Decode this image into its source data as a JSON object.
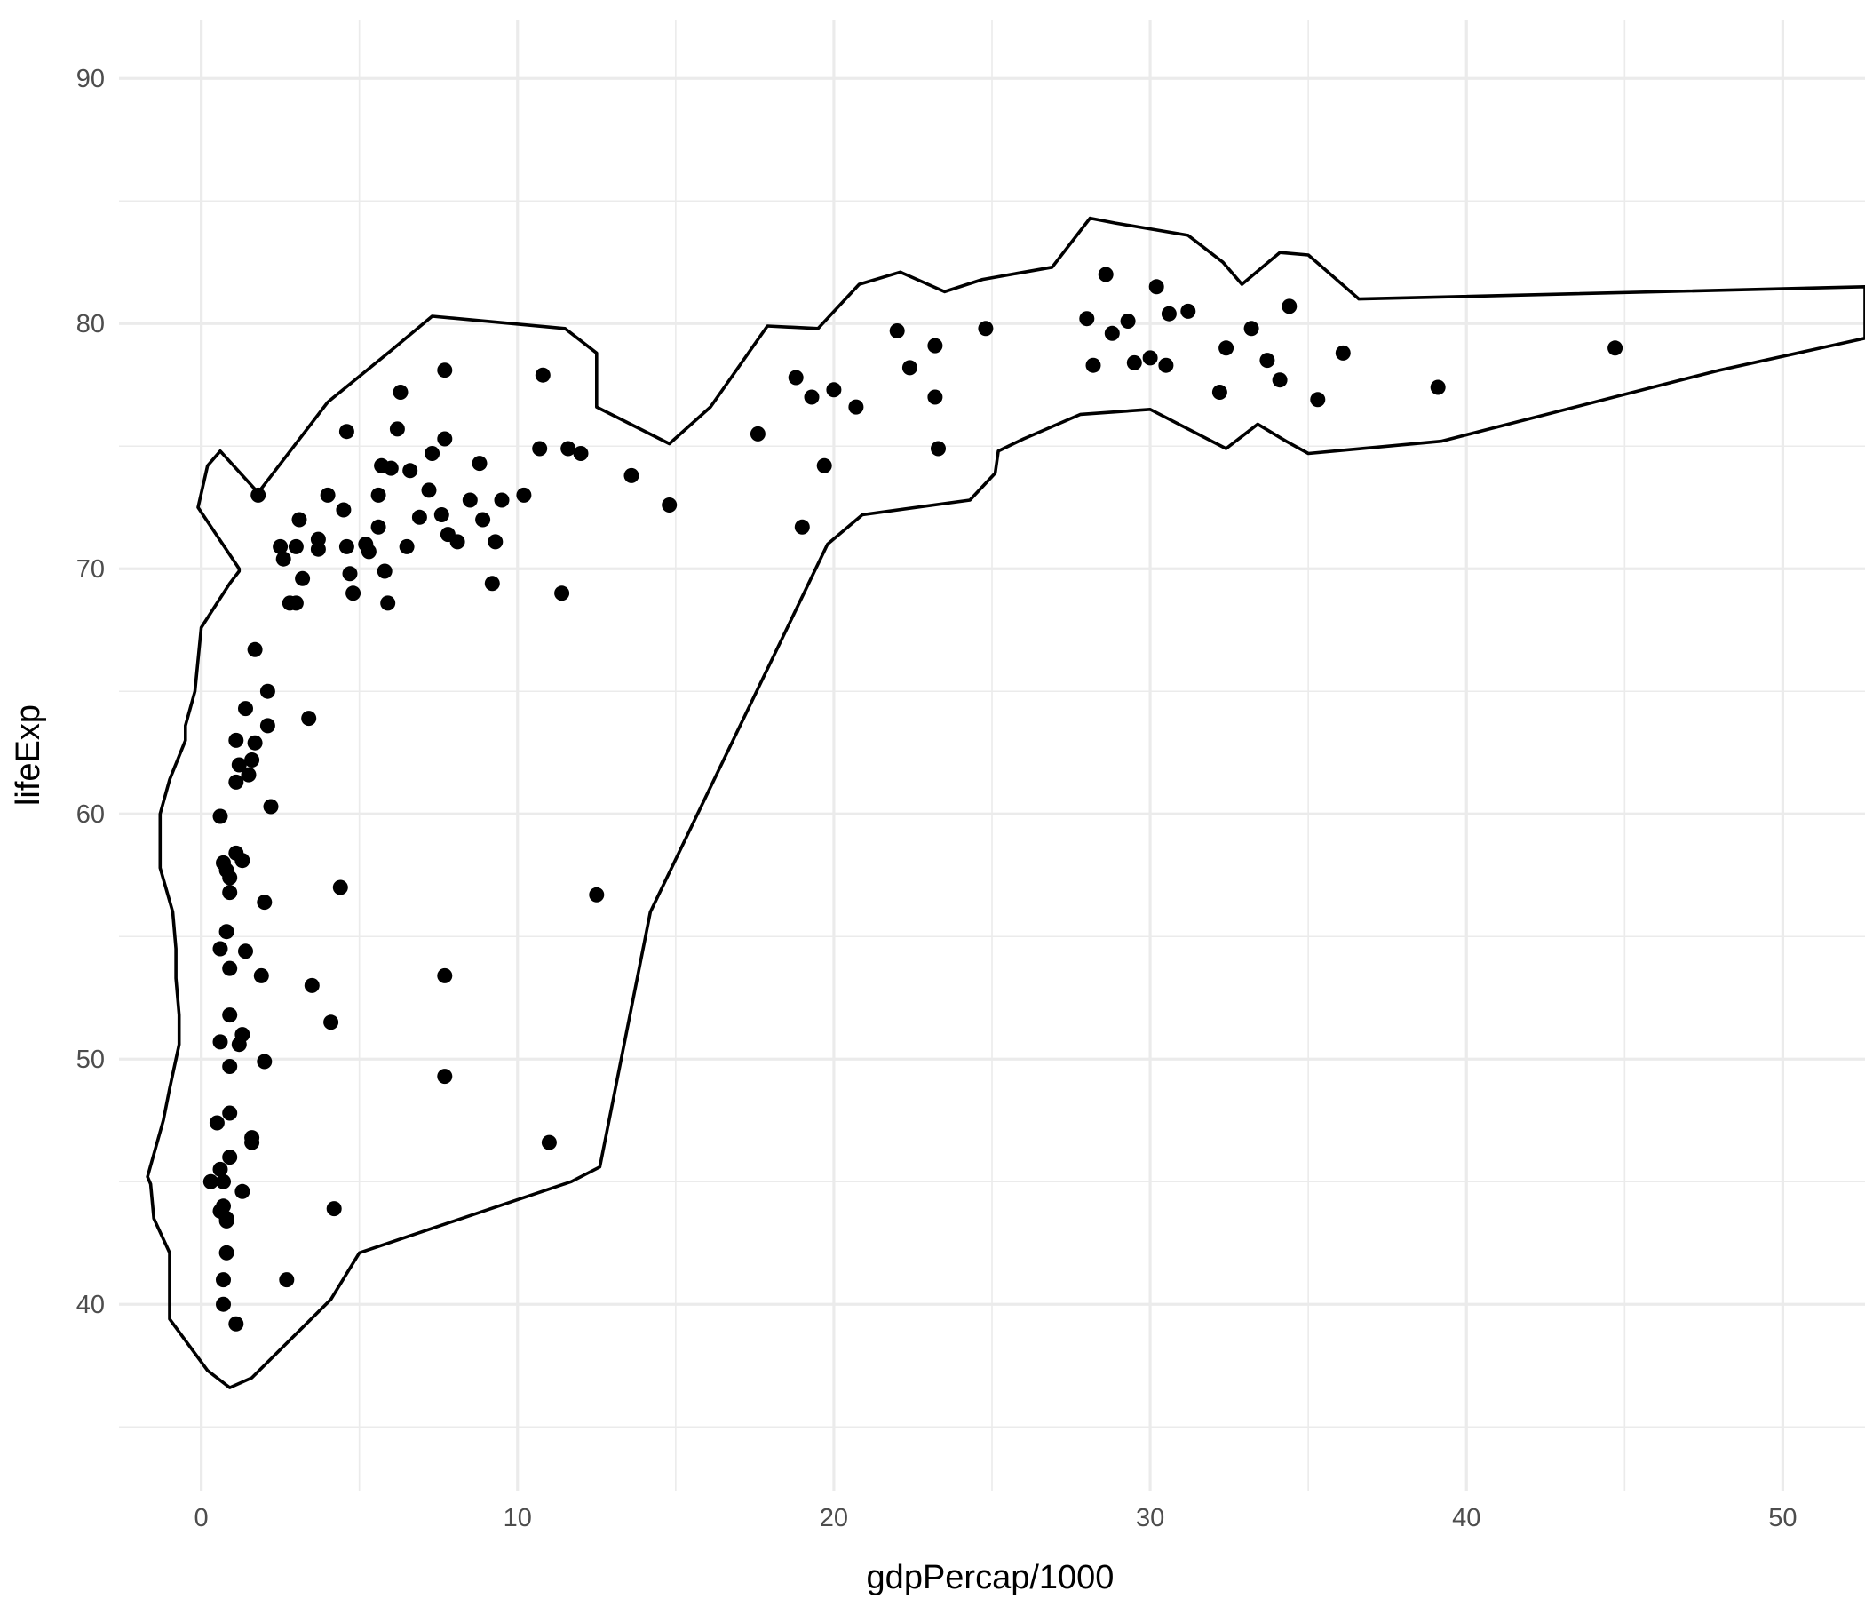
{
  "chart_data": {
    "type": "scatter",
    "title": "",
    "xlabel": "gdpPercap/1000",
    "ylabel": "lifeExp",
    "xlim": [
      -2.6,
      52.6
    ],
    "ylim": [
      32.4,
      92.4
    ],
    "x_ticks": [
      0,
      10,
      20,
      30,
      40,
      50
    ],
    "y_ticks": [
      40,
      50,
      60,
      70,
      80,
      90
    ],
    "x_minor_ticks": [
      5,
      15,
      25,
      35,
      45
    ],
    "y_minor_ticks": [
      35,
      45,
      55,
      65,
      75,
      85
    ],
    "grid": true,
    "legend": "none",
    "colors": {
      "points": "#000000",
      "outline": "#000000",
      "grid": "#ebebeb",
      "tick_text": "#4d4d4d"
    },
    "points": [
      [
        0.3,
        45.0
      ],
      [
        0.5,
        47.4
      ],
      [
        0.6,
        50.7
      ],
      [
        0.6,
        43.8
      ],
      [
        0.6,
        45.5
      ],
      [
        0.6,
        54.5
      ],
      [
        0.6,
        59.9
      ],
      [
        0.7,
        58.0
      ],
      [
        0.7,
        44.0
      ],
      [
        0.7,
        40.0
      ],
      [
        0.7,
        41.0
      ],
      [
        0.7,
        45.0
      ],
      [
        0.8,
        42.1
      ],
      [
        0.8,
        43.4
      ],
      [
        0.8,
        55.2
      ],
      [
        0.8,
        57.7
      ],
      [
        0.8,
        43.5
      ],
      [
        0.9,
        57.4
      ],
      [
        0.9,
        56.8
      ],
      [
        0.9,
        49.7
      ],
      [
        0.9,
        46.0
      ],
      [
        0.9,
        53.7
      ],
      [
        0.9,
        47.8
      ],
      [
        0.9,
        51.8
      ],
      [
        1.1,
        39.2
      ],
      [
        1.1,
        61.3
      ],
      [
        1.1,
        63.0
      ],
      [
        1.1,
        58.4
      ],
      [
        1.2,
        62.0
      ],
      [
        1.2,
        50.6
      ],
      [
        1.3,
        51.0
      ],
      [
        1.3,
        44.6
      ],
      [
        1.3,
        58.1
      ],
      [
        1.4,
        64.3
      ],
      [
        1.4,
        54.4
      ],
      [
        1.5,
        61.6
      ],
      [
        1.6,
        62.2
      ],
      [
        1.6,
        46.6
      ],
      [
        1.6,
        46.8
      ],
      [
        1.7,
        66.7
      ],
      [
        1.7,
        62.9
      ],
      [
        1.8,
        73.0
      ],
      [
        1.9,
        53.4
      ],
      [
        2.0,
        49.9
      ],
      [
        2.0,
        56.4
      ],
      [
        2.1,
        63.6
      ],
      [
        2.1,
        65.0
      ],
      [
        2.2,
        60.3
      ],
      [
        2.5,
        70.9
      ],
      [
        2.6,
        70.4
      ],
      [
        2.7,
        41.0
      ],
      [
        2.8,
        68.6
      ],
      [
        3.0,
        70.9
      ],
      [
        3.0,
        68.6
      ],
      [
        3.1,
        72.0
      ],
      [
        3.2,
        69.6
      ],
      [
        3.4,
        63.9
      ],
      [
        3.5,
        53.0
      ],
      [
        3.7,
        71.2
      ],
      [
        3.7,
        70.8
      ],
      [
        4.0,
        73.0
      ],
      [
        4.1,
        51.5
      ],
      [
        4.2,
        43.9
      ],
      [
        4.4,
        57.0
      ],
      [
        4.5,
        72.4
      ],
      [
        4.6,
        70.9
      ],
      [
        4.6,
        75.6
      ],
      [
        4.7,
        69.8
      ],
      [
        4.8,
        69.0
      ],
      [
        5.2,
        71.0
      ],
      [
        5.3,
        70.7
      ],
      [
        5.6,
        71.7
      ],
      [
        5.6,
        73.0
      ],
      [
        5.7,
        74.2
      ],
      [
        5.8,
        69.9
      ],
      [
        5.9,
        68.6
      ],
      [
        6.0,
        74.1
      ],
      [
        6.2,
        75.7
      ],
      [
        6.3,
        77.2
      ],
      [
        6.5,
        70.9
      ],
      [
        6.6,
        74.0
      ],
      [
        6.9,
        72.1
      ],
      [
        7.2,
        73.2
      ],
      [
        7.3,
        74.7
      ],
      [
        7.6,
        72.2
      ],
      [
        7.7,
        75.3
      ],
      [
        7.7,
        53.4
      ],
      [
        7.7,
        49.3
      ],
      [
        7.7,
        78.1
      ],
      [
        7.8,
        71.4
      ],
      [
        8.1,
        71.1
      ],
      [
        8.5,
        72.8
      ],
      [
        8.8,
        74.3
      ],
      [
        8.9,
        72.0
      ],
      [
        9.2,
        69.4
      ],
      [
        9.3,
        71.1
      ],
      [
        9.5,
        72.8
      ],
      [
        10.2,
        73.0
      ],
      [
        10.7,
        74.9
      ],
      [
        10.8,
        77.9
      ],
      [
        11.0,
        46.6
      ],
      [
        11.4,
        69.0
      ],
      [
        11.6,
        74.9
      ],
      [
        12.0,
        74.7
      ],
      [
        12.5,
        56.7
      ],
      [
        13.6,
        73.8
      ],
      [
        14.8,
        72.6
      ],
      [
        17.6,
        75.5
      ],
      [
        18.8,
        77.8
      ],
      [
        19.0,
        71.7
      ],
      [
        19.3,
        77.0
      ],
      [
        19.7,
        74.2
      ],
      [
        20.0,
        77.3
      ],
      [
        20.7,
        76.6
      ],
      [
        22.0,
        79.7
      ],
      [
        22.4,
        78.2
      ],
      [
        23.2,
        79.1
      ],
      [
        23.2,
        77.0
      ],
      [
        23.3,
        74.9
      ],
      [
        24.8,
        79.8
      ],
      [
        28.0,
        80.2
      ],
      [
        28.2,
        78.3
      ],
      [
        28.6,
        82.0
      ],
      [
        28.8,
        79.6
      ],
      [
        29.3,
        80.1
      ],
      [
        29.5,
        78.4
      ],
      [
        30.0,
        78.6
      ],
      [
        30.2,
        81.5
      ],
      [
        30.5,
        78.3
      ],
      [
        30.6,
        80.4
      ],
      [
        31.2,
        80.5
      ],
      [
        32.2,
        77.2
      ],
      [
        32.4,
        79.0
      ],
      [
        33.2,
        79.8
      ],
      [
        33.7,
        78.5
      ],
      [
        34.1,
        77.7
      ],
      [
        34.4,
        80.7
      ],
      [
        35.3,
        76.9
      ],
      [
        36.1,
        78.8
      ],
      [
        39.1,
        77.4
      ],
      [
        44.7,
        79.0
      ]
    ],
    "outline": [
      [
        1.8,
        73.1
      ],
      [
        4.0,
        76.8
      ],
      [
        6.0,
        78.9
      ],
      [
        7.3,
        80.3
      ],
      [
        11.5,
        79.8
      ],
      [
        12.5,
        78.8
      ],
      [
        12.5,
        76.6
      ],
      [
        14.8,
        75.1
      ],
      [
        16.1,
        76.6
      ],
      [
        17.9,
        79.9
      ],
      [
        19.5,
        79.8
      ],
      [
        20.8,
        81.6
      ],
      [
        22.1,
        82.1
      ],
      [
        23.5,
        81.3
      ],
      [
        24.7,
        81.8
      ],
      [
        26.9,
        82.3
      ],
      [
        28.1,
        84.3
      ],
      [
        28.9,
        84.1
      ],
      [
        31.2,
        83.6
      ],
      [
        32.3,
        82.5
      ],
      [
        32.9,
        81.6
      ],
      [
        34.1,
        82.9
      ],
      [
        35.0,
        82.8
      ],
      [
        36.6,
        81.0
      ],
      [
        52.6,
        81.5
      ],
      [
        52.6,
        79.4
      ],
      [
        48.0,
        78.1
      ],
      [
        39.2,
        75.2
      ],
      [
        35.0,
        74.7
      ],
      [
        34.3,
        75.2
      ],
      [
        33.4,
        75.9
      ],
      [
        32.4,
        74.9
      ],
      [
        30.0,
        76.5
      ],
      [
        27.8,
        76.3
      ],
      [
        26.0,
        75.3
      ],
      [
        25.2,
        74.8
      ],
      [
        25.1,
        73.9
      ],
      [
        24.3,
        72.8
      ],
      [
        20.9,
        72.2
      ],
      [
        19.8,
        71.0
      ],
      [
        14.2,
        56.0
      ],
      [
        12.6,
        45.6
      ],
      [
        11.7,
        45.0
      ],
      [
        5.0,
        42.1
      ],
      [
        4.1,
        40.2
      ],
      [
        1.6,
        37.0
      ],
      [
        0.9,
        36.6
      ],
      [
        0.2,
        37.3
      ],
      [
        -1.0,
        39.4
      ],
      [
        -1.0,
        42.1
      ],
      [
        -1.5,
        43.5
      ],
      [
        -1.6,
        44.9
      ],
      [
        -1.7,
        45.2
      ],
      [
        -1.2,
        47.5
      ],
      [
        -1.0,
        48.8
      ],
      [
        -0.7,
        50.6
      ],
      [
        -0.7,
        51.8
      ],
      [
        -0.8,
        53.3
      ],
      [
        -0.8,
        54.5
      ],
      [
        -0.9,
        56.0
      ],
      [
        -1.3,
        57.8
      ],
      [
        -1.3,
        60.0
      ],
      [
        -1.0,
        61.4
      ],
      [
        -0.5,
        63.0
      ],
      [
        -0.5,
        63.6
      ],
      [
        -0.2,
        65.0
      ],
      [
        0.0,
        67.6
      ],
      [
        0.5,
        68.6
      ],
      [
        0.9,
        69.4
      ],
      [
        1.2,
        69.9
      ],
      [
        1.2,
        70.0
      ],
      [
        -0.1,
        72.5
      ],
      [
        0.2,
        74.2
      ],
      [
        0.6,
        74.8
      ],
      [
        1.8,
        73.1
      ]
    ]
  }
}
